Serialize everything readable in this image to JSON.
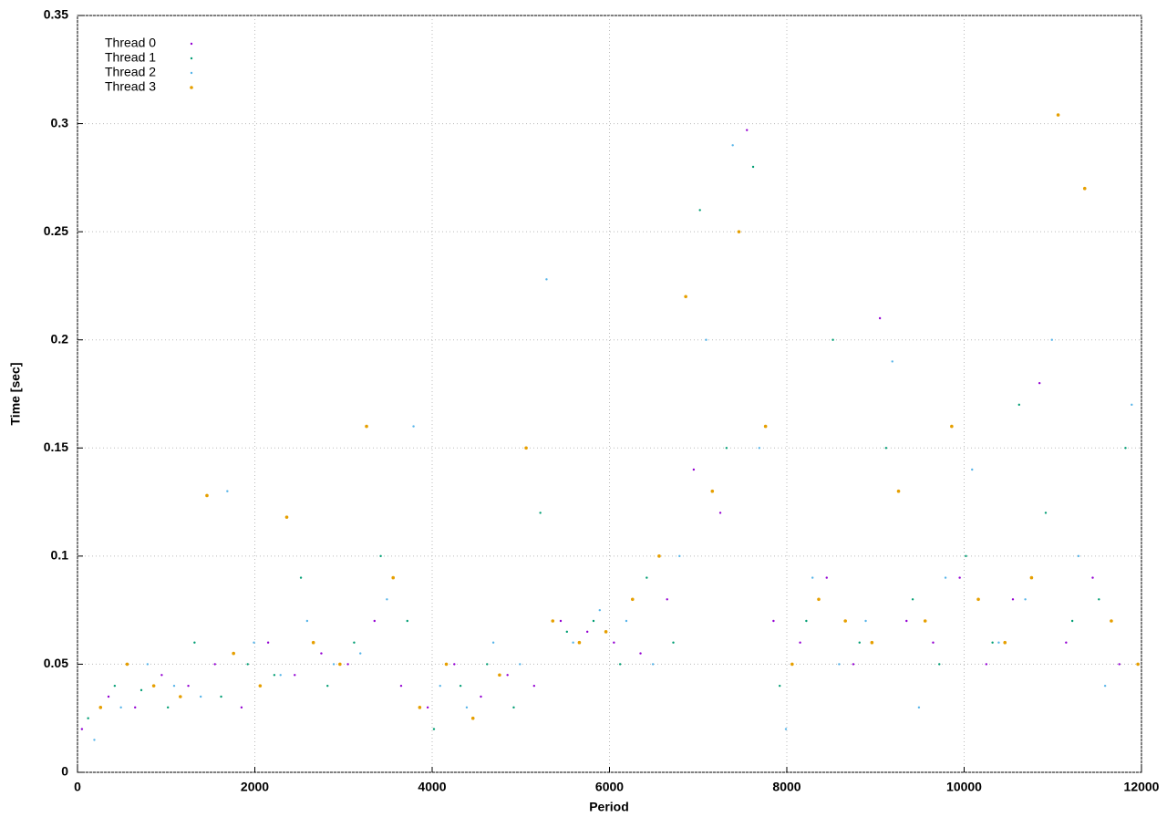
{
  "chart_data": {
    "type": "scatter",
    "xlabel": "Period",
    "ylabel": "Time [sec]",
    "xlim": [
      0,
      12000
    ],
    "xticks": [
      0,
      2000,
      4000,
      6000,
      8000,
      10000,
      12000
    ],
    "ylim": [
      0,
      0.35
    ],
    "yticks": [
      0,
      0.05,
      0.1,
      0.15,
      0.2,
      0.25,
      0.3,
      0.35
    ],
    "grid": true,
    "legend": "top-left",
    "series": [
      {
        "name": "Thread 0",
        "color": "#9400d3",
        "x": [
          50,
          350,
          650,
          950,
          1250,
          1550,
          1850,
          2150,
          2450,
          2750,
          3050,
          3350,
          3650,
          3950,
          4250,
          4550,
          4850,
          5150,
          5450,
          5750,
          6050,
          6350,
          6650,
          6950,
          7250,
          7550,
          7850,
          8150,
          8450,
          8750,
          9050,
          9350,
          9650,
          9950,
          10250,
          10550,
          10850,
          11150,
          11450,
          11750
        ],
        "y": [
          0.02,
          0.035,
          0.03,
          0.045,
          0.04,
          0.05,
          0.03,
          0.06,
          0.045,
          0.055,
          0.05,
          0.07,
          0.04,
          0.03,
          0.05,
          0.035,
          0.045,
          0.04,
          0.07,
          0.065,
          0.06,
          0.055,
          0.08,
          0.14,
          0.12,
          0.297,
          0.07,
          0.06,
          0.09,
          0.05,
          0.21,
          0.07,
          0.06,
          0.09,
          0.05,
          0.08,
          0.18,
          0.06,
          0.09,
          0.05
        ]
      },
      {
        "name": "Thread 1",
        "color": "#009e73",
        "x": [
          120,
          420,
          720,
          1020,
          1320,
          1620,
          1920,
          2220,
          2520,
          2820,
          3120,
          3420,
          3720,
          4020,
          4320,
          4620,
          4920,
          5220,
          5520,
          5820,
          6120,
          6420,
          6720,
          7020,
          7320,
          7620,
          7920,
          8220,
          8520,
          8820,
          9120,
          9420,
          9720,
          10020,
          10320,
          10620,
          10920,
          11220,
          11520,
          11820
        ],
        "y": [
          0.025,
          0.04,
          0.038,
          0.03,
          0.06,
          0.035,
          0.05,
          0.045,
          0.09,
          0.04,
          0.06,
          0.1,
          0.07,
          0.02,
          0.04,
          0.05,
          0.03,
          0.12,
          0.065,
          0.07,
          0.05,
          0.09,
          0.06,
          0.26,
          0.15,
          0.28,
          0.04,
          0.07,
          0.2,
          0.06,
          0.15,
          0.08,
          0.05,
          0.1,
          0.06,
          0.17,
          0.12,
          0.07,
          0.08,
          0.15
        ]
      },
      {
        "name": "Thread 2",
        "color": "#56b4e9",
        "x": [
          190,
          490,
          790,
          1090,
          1390,
          1690,
          1990,
          2290,
          2590,
          2890,
          3190,
          3490,
          3790,
          4090,
          4390,
          4690,
          4990,
          5290,
          5590,
          5890,
          6190,
          6490,
          6790,
          7090,
          7390,
          7690,
          7990,
          8290,
          8590,
          8890,
          9190,
          9490,
          9790,
          10090,
          10390,
          10690,
          10990,
          11290,
          11590,
          11890
        ],
        "y": [
          0.015,
          0.03,
          0.05,
          0.04,
          0.035,
          0.13,
          0.06,
          0.045,
          0.07,
          0.05,
          0.055,
          0.08,
          0.16,
          0.04,
          0.03,
          0.06,
          0.05,
          0.228,
          0.06,
          0.075,
          0.07,
          0.05,
          0.1,
          0.2,
          0.29,
          0.15,
          0.02,
          0.09,
          0.05,
          0.07,
          0.19,
          0.03,
          0.09,
          0.14,
          0.06,
          0.08,
          0.2,
          0.1,
          0.04,
          0.17
        ]
      },
      {
        "name": "Thread 3",
        "color": "#e69f00",
        "x": [
          260,
          560,
          860,
          1160,
          1460,
          1760,
          2060,
          2360,
          2660,
          2960,
          3260,
          3560,
          3860,
          4160,
          4460,
          4760,
          5060,
          5360,
          5660,
          5960,
          6260,
          6560,
          6860,
          7160,
          7460,
          7760,
          8060,
          8360,
          8660,
          8960,
          9260,
          9560,
          9860,
          10160,
          10460,
          10760,
          11060,
          11360,
          11660,
          11960
        ],
        "y": [
          0.03,
          0.05,
          0.04,
          0.035,
          0.128,
          0.055,
          0.04,
          0.118,
          0.06,
          0.05,
          0.16,
          0.09,
          0.03,
          0.05,
          0.025,
          0.045,
          0.15,
          0.07,
          0.06,
          0.065,
          0.08,
          0.1,
          0.22,
          0.13,
          0.25,
          0.16,
          0.05,
          0.08,
          0.07,
          0.06,
          0.13,
          0.07,
          0.16,
          0.08,
          0.06,
          0.09,
          0.304,
          0.27,
          0.07,
          0.05
        ]
      }
    ]
  }
}
